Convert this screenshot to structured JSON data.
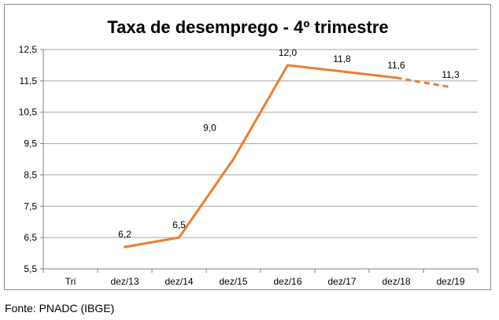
{
  "source_note": "Fonte: PNADC (IBGE)",
  "colors": {
    "line": "#ED7D31",
    "grid": "#A6A6A6",
    "axis": "#808080",
    "text": "#000000",
    "border": "#8C8C8C"
  },
  "chart_data": {
    "type": "line",
    "title": "Taxa de desemprego - 4º trimestre",
    "xlabel": "",
    "ylabel": "",
    "categories": [
      "Tri",
      "dez/13",
      "dez/14",
      "dez/15",
      "dez/16",
      "dez/17",
      "dez/18",
      "dez/19"
    ],
    "series": [
      {
        "values": [
          null,
          6.2,
          6.5,
          9.0,
          12.0,
          11.8,
          11.6,
          11.3
        ],
        "data_labels": [
          null,
          "6,2",
          "6,5",
          "9,0",
          "12,0",
          "11,8",
          "11,6",
          "11,3"
        ],
        "dashed_from_index": 6
      }
    ],
    "yticks": [
      "5,5",
      "6,5",
      "7,5",
      "8,5",
      "9,5",
      "10,5",
      "11,5",
      "12,5"
    ],
    "ylim": [
      5.5,
      12.5
    ],
    "grid": true,
    "legend": "none"
  }
}
